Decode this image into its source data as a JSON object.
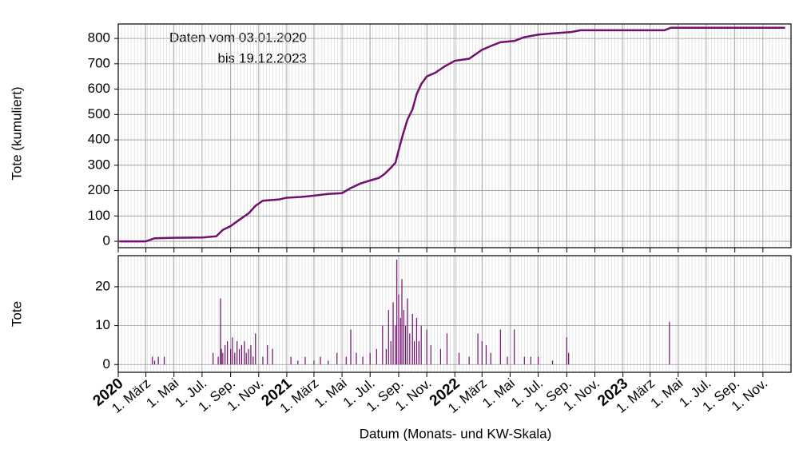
{
  "chart_data": [
    {
      "type": "line",
      "ylabel": "Tote (kumuliert)",
      "annotation": [
        "Daten vom 03.01.2020",
        "bis 19.12.2023"
      ],
      "color": "#73106f",
      "xlim": [
        "2020-01-01",
        "2024-01-01"
      ],
      "ylim": [
        -25,
        857
      ],
      "yticks": [
        0,
        100,
        200,
        300,
        400,
        500,
        600,
        700,
        800
      ],
      "grid": true,
      "x": [
        "2020-01-03",
        "2020-03-01",
        "2020-03-20",
        "2020-05-01",
        "2020-07-01",
        "2020-08-01",
        "2020-08-15",
        "2020-09-01",
        "2020-09-20",
        "2020-10-10",
        "2020-10-25",
        "2020-11-10",
        "2020-12-15",
        "2021-01-01",
        "2021-02-01",
        "2021-03-01",
        "2021-04-01",
        "2021-05-01",
        "2021-05-20",
        "2021-06-10",
        "2021-07-01",
        "2021-07-20",
        "2021-08-01",
        "2021-08-15",
        "2021-08-25",
        "2021-09-01",
        "2021-09-10",
        "2021-09-20",
        "2021-10-01",
        "2021-10-10",
        "2021-10-20",
        "2021-11-01",
        "2021-11-20",
        "2021-12-10",
        "2022-01-01",
        "2022-02-01",
        "2022-03-01",
        "2022-03-20",
        "2022-04-10",
        "2022-05-10",
        "2022-06-01",
        "2022-07-01",
        "2022-08-01",
        "2022-09-10",
        "2022-10-01",
        "2023-01-01",
        "2023-04-01",
        "2023-04-15",
        "2023-12-19"
      ],
      "values": [
        0,
        0,
        12,
        14,
        15,
        20,
        45,
        60,
        85,
        110,
        140,
        160,
        165,
        172,
        175,
        180,
        187,
        190,
        210,
        228,
        240,
        250,
        265,
        290,
        310,
        360,
        420,
        480,
        520,
        580,
        620,
        650,
        665,
        690,
        712,
        720,
        755,
        770,
        785,
        790,
        805,
        815,
        820,
        825,
        832,
        832,
        832,
        842,
        842
      ]
    },
    {
      "type": "bar",
      "ylabel": "Tote",
      "xlabel": "Datum (Monats- und KW-Skala)",
      "color": "#73106f",
      "xlim": [
        "2020-01-01",
        "2024-01-01"
      ],
      "ylim": [
        -2,
        28
      ],
      "yticks": [
        0,
        10,
        20
      ],
      "grid": true,
      "xticks": [
        {
          "value": "2020-01-01",
          "label": "2020"
        },
        {
          "value": "2020-03-01",
          "label": "1. März"
        },
        {
          "value": "2020-05-01",
          "label": "1. Mai"
        },
        {
          "value": "2020-07-01",
          "label": "1. Jul."
        },
        {
          "value": "2020-09-01",
          "label": "1. Sep."
        },
        {
          "value": "2020-11-01",
          "label": "1. Nov."
        },
        {
          "value": "2021-01-01",
          "label": "2021"
        },
        {
          "value": "2021-03-01",
          "label": "1. März"
        },
        {
          "value": "2021-05-01",
          "label": "1. Mai"
        },
        {
          "value": "2021-07-01",
          "label": "1. Jul."
        },
        {
          "value": "2021-09-01",
          "label": "1. Sep."
        },
        {
          "value": "2021-11-01",
          "label": "1. Nov."
        },
        {
          "value": "2022-01-01",
          "label": "2022"
        },
        {
          "value": "2022-03-01",
          "label": "1. März"
        },
        {
          "value": "2022-05-01",
          "label": "1. Mai"
        },
        {
          "value": "2022-07-01",
          "label": "1. Jul."
        },
        {
          "value": "2022-09-01",
          "label": "1. Sep."
        },
        {
          "value": "2022-11-01",
          "label": "1. Nov."
        },
        {
          "value": "2023-01-01",
          "label": "2023"
        },
        {
          "value": "2023-03-01",
          "label": "1. März"
        },
        {
          "value": "2023-05-01",
          "label": "1. Mai"
        },
        {
          "value": "2023-07-01",
          "label": "1. Jul."
        },
        {
          "value": "2023-09-01",
          "label": "1. Sep."
        },
        {
          "value": "2023-11-01",
          "label": "1. Nov."
        }
      ],
      "x": [
        "2020-03-15",
        "2020-03-20",
        "2020-03-28",
        "2020-04-10",
        "2020-07-25",
        "2020-08-05",
        "2020-08-10",
        "2020-08-12",
        "2020-08-15",
        "2020-08-20",
        "2020-08-25",
        "2020-09-01",
        "2020-09-05",
        "2020-09-10",
        "2020-09-15",
        "2020-09-20",
        "2020-09-25",
        "2020-10-01",
        "2020-10-05",
        "2020-10-10",
        "2020-10-15",
        "2020-10-20",
        "2020-10-25",
        "2020-11-10",
        "2020-11-20",
        "2020-12-01",
        "2021-01-10",
        "2021-01-25",
        "2021-02-10",
        "2021-03-01",
        "2021-03-15",
        "2021-04-01",
        "2021-04-20",
        "2021-05-10",
        "2021-05-20",
        "2021-06-01",
        "2021-06-15",
        "2021-07-01",
        "2021-07-15",
        "2021-07-28",
        "2021-08-05",
        "2021-08-10",
        "2021-08-15",
        "2021-08-20",
        "2021-08-25",
        "2021-08-28",
        "2021-09-01",
        "2021-09-05",
        "2021-09-08",
        "2021-09-12",
        "2021-09-16",
        "2021-09-20",
        "2021-09-25",
        "2021-10-01",
        "2021-10-05",
        "2021-10-10",
        "2021-10-15",
        "2021-10-20",
        "2021-11-01",
        "2021-11-10",
        "2021-12-01",
        "2021-12-15",
        "2022-01-10",
        "2022-02-01",
        "2022-02-20",
        "2022-03-01",
        "2022-03-10",
        "2022-03-20",
        "2022-04-10",
        "2022-04-25",
        "2022-05-10",
        "2022-06-01",
        "2022-06-15",
        "2022-07-01",
        "2022-08-01",
        "2022-09-01",
        "2022-09-05",
        "2023-04-12"
      ],
      "values": [
        2,
        1,
        2,
        2,
        3,
        2,
        17,
        4,
        3,
        5,
        6,
        4,
        7,
        3,
        6,
        4,
        5,
        6,
        3,
        4,
        5,
        2,
        8,
        2,
        5,
        4,
        2,
        1,
        2,
        1,
        2,
        1,
        3,
        2,
        9,
        3,
        2,
        3,
        4,
        10,
        4,
        14,
        6,
        16,
        10,
        27,
        18,
        12,
        22,
        14,
        10,
        17,
        8,
        13,
        6,
        12,
        6,
        10,
        9,
        5,
        4,
        8,
        3,
        2,
        8,
        6,
        5,
        3,
        9,
        2,
        9,
        2,
        2,
        2,
        1,
        7,
        3,
        11
      ]
    }
  ]
}
